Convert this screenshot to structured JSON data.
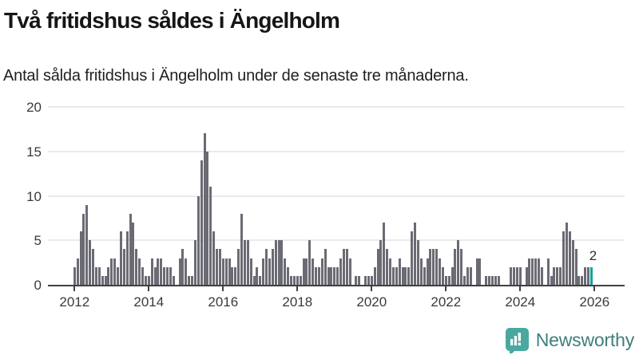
{
  "header": {
    "title": "Två fritidshus såldes i Ängelholm",
    "subtitle": "Antal sålda fritidshus i Ängelholm under de senaste tre månaderna."
  },
  "chart_data": {
    "type": "bar",
    "title": "Två fritidshus såldes i Ängelholm",
    "subtitle": "Antal sålda fritidshus i Ängelholm under de senaste tre månaderna.",
    "x_start_month": "2012-01",
    "x_end_month": "2025-12",
    "values": [
      2,
      3,
      6,
      8,
      9,
      5,
      4,
      2,
      2,
      1,
      1,
      2,
      3,
      3,
      2,
      6,
      4,
      6,
      8,
      7,
      4,
      3,
      2,
      1,
      1,
      3,
      2,
      3,
      3,
      2,
      2,
      2,
      1,
      0,
      3,
      4,
      3,
      1,
      1,
      5,
      10,
      14,
      17,
      15,
      11,
      6,
      4,
      4,
      3,
      3,
      3,
      2,
      2,
      4,
      8,
      5,
      5,
      3,
      1,
      2,
      1,
      3,
      4,
      3,
      4,
      5,
      5,
      5,
      3,
      2,
      1,
      1,
      1,
      1,
      3,
      3,
      5,
      3,
      2,
      2,
      3,
      4,
      2,
      2,
      2,
      2,
      3,
      4,
      4,
      3,
      0,
      1,
      1,
      0,
      1,
      1,
      1,
      2,
      4,
      5,
      7,
      4,
      3,
      2,
      2,
      3,
      2,
      2,
      2,
      6,
      7,
      5,
      3,
      2,
      3,
      4,
      4,
      4,
      3,
      2,
      1,
      1,
      2,
      4,
      5,
      4,
      1,
      2,
      2,
      0,
      3,
      3,
      0,
      1,
      1,
      1,
      1,
      1,
      0,
      0,
      0,
      2,
      2,
      2,
      2,
      0,
      2,
      3,
      3,
      3,
      3,
      2,
      0,
      3,
      1,
      2,
      2,
      2,
      6,
      7,
      6,
      5,
      4,
      1,
      1,
      2,
      2,
      2
    ],
    "ylim": [
      0,
      20
    ],
    "y_ticks": [
      0,
      5,
      10,
      15,
      20
    ],
    "x_tick_years": [
      2012,
      2014,
      2016,
      2018,
      2020,
      2022,
      2024,
      2026
    ],
    "grid": "horizontal",
    "bar_color": "#6b6b74",
    "highlight": {
      "index": 167,
      "value": 2,
      "label": "2",
      "color": "#10a69e"
    }
  },
  "footer": {
    "brand": "Newsworthy",
    "logo_icon": "newsworthy-speech-bubble-chart-icon",
    "logo_color": "#4aa8a0",
    "text_color": "#3e7f7c"
  }
}
